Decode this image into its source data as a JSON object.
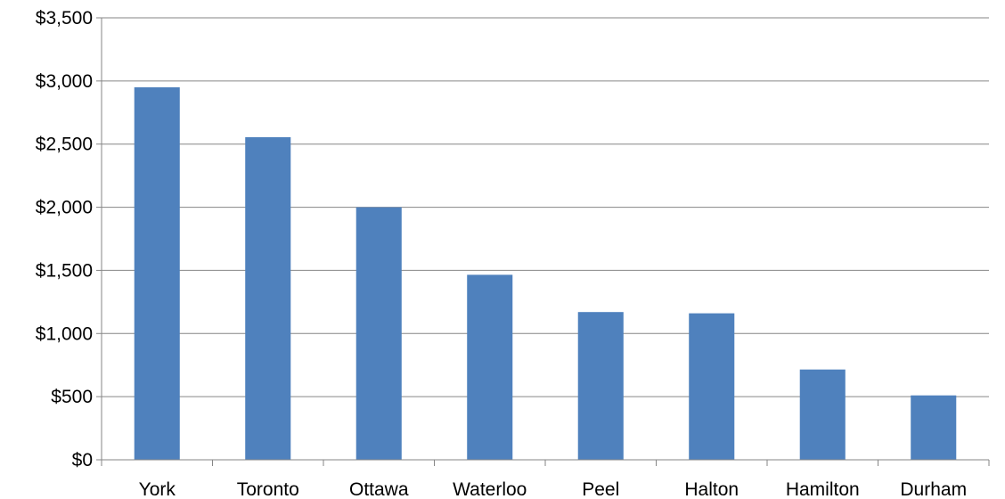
{
  "chart_data": {
    "type": "bar",
    "title": "",
    "xlabel": "",
    "ylabel": "",
    "categories": [
      "York",
      "Toronto",
      "Ottawa",
      "Waterloo",
      "Peel",
      "Halton",
      "Hamilton",
      "Durham"
    ],
    "values": [
      2950,
      2555,
      2000,
      1465,
      1170,
      1160,
      715,
      510
    ],
    "ylim": [
      0,
      3500
    ],
    "yticks": [
      0,
      500,
      1000,
      1500,
      2000,
      2500,
      3000,
      3500
    ],
    "ytick_labels": [
      "$0",
      "$500",
      "$1,000",
      "$1,500",
      "$2,000",
      "$2,500",
      "$3,000",
      "$3,500"
    ],
    "grid": true,
    "legend": "none",
    "bar_color": "#4F81BD"
  }
}
